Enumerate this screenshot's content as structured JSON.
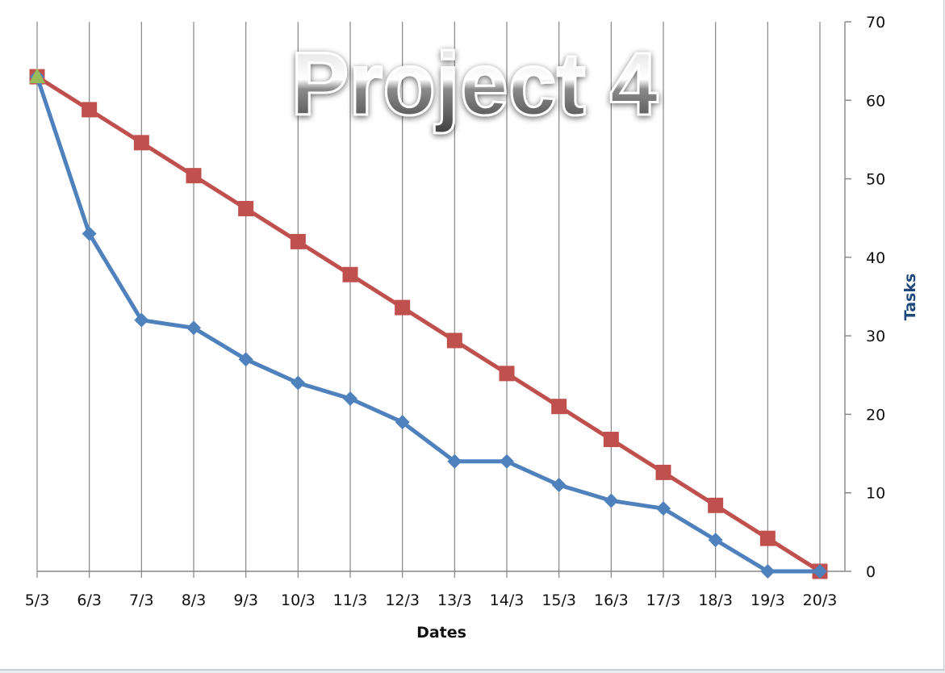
{
  "chart_data": {
    "type": "line",
    "title": "Project 4",
    "xlabel": "Dates",
    "ylabel": "Tasks",
    "categories": [
      "5/3",
      "6/3",
      "7/3",
      "8/3",
      "9/3",
      "10/3",
      "11/3",
      "12/3",
      "13/3",
      "14/3",
      "15/3",
      "16/3",
      "17/3",
      "18/3",
      "19/3",
      "20/3"
    ],
    "ylim": [
      0,
      70
    ],
    "yticks": [
      0,
      10,
      20,
      30,
      40,
      50,
      60,
      70
    ],
    "y_axis_side": "right",
    "grid": "vertical",
    "legend": "none",
    "series": [
      {
        "color": "#c0504d",
        "marker": "square",
        "values": [
          63,
          58.8,
          54.6,
          50.4,
          46.2,
          42,
          37.8,
          33.6,
          29.4,
          25.2,
          21,
          16.8,
          12.6,
          8.4,
          4.2,
          0
        ]
      },
      {
        "color": "#4f81bd",
        "marker": "diamond",
        "values": [
          63,
          43,
          32,
          31,
          27,
          24,
          22,
          19,
          14,
          14,
          11,
          9,
          8,
          4,
          0,
          0
        ]
      }
    ],
    "start_marker": {
      "category": "5/3",
      "value": 63,
      "color": "#9bbb59",
      "shape": "triangle"
    }
  },
  "colors": {
    "axis_title": "#1f497d",
    "grid": "#858585"
  }
}
